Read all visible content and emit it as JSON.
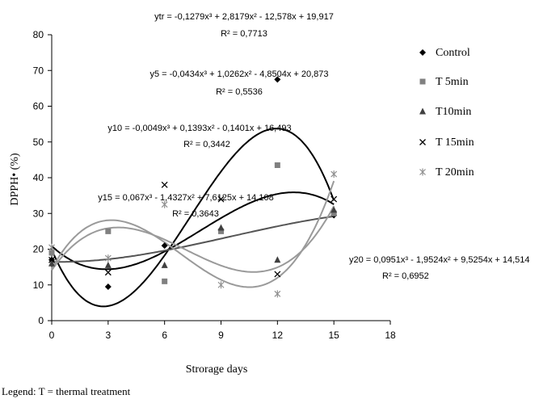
{
  "chart_data": {
    "type": "scatter",
    "xlabel": "Strorage days",
    "ylabel": "DPPH• (%)",
    "xlim": [
      0,
      18
    ],
    "ylim": [
      0,
      80
    ],
    "xticks": [
      0,
      3,
      6,
      9,
      12,
      15,
      18
    ],
    "yticks": [
      0,
      10,
      20,
      30,
      40,
      50,
      60,
      70,
      80
    ],
    "grid": false,
    "legend_position": "right",
    "series": [
      {
        "name": "Control",
        "marker": "diamond",
        "color": "#000000",
        "x": [
          0,
          3,
          6,
          9,
          12,
          15
        ],
        "y": [
          17,
          9.5,
          21,
          25.5,
          67.5,
          29.5
        ],
        "trend": {
          "coeffs": [
            -0.1279,
            2.8179,
            -12.578,
            19.917
          ],
          "color": "#000000",
          "equation": "ytr = -0,1279x³ + 2,8179x² - 12,578x + 19,917",
          "r2": "R² = 0,7713"
        }
      },
      {
        "name": "T 5min",
        "marker": "square",
        "color": "#808080",
        "x": [
          0,
          3,
          6,
          9,
          12,
          15
        ],
        "y": [
          19,
          25,
          11,
          25,
          43.5,
          30
        ],
        "trend": {
          "coeffs": [
            -0.0434,
            1.0262,
            -4.8504,
            20.873
          ],
          "color": "#000000",
          "equation": "y5 = -0,0434x³ + 1,0262x² - 4,8504x + 20,873",
          "r2": "R² = 0,5536"
        }
      },
      {
        "name": "T10min",
        "marker": "triangle",
        "color": "#404040",
        "x": [
          0,
          3,
          6,
          9,
          12,
          15
        ],
        "y": [
          16,
          15.5,
          15.5,
          26,
          17,
          31
        ],
        "trend": {
          "coeffs": [
            -0.0049,
            0.1393,
            -0.1401,
            16.493
          ],
          "color": "#555555",
          "equation": "y10 = -0,0049x³ + 0,1393x² - 0,1401x + 16,493",
          "r2": "R² = 0,3442"
        }
      },
      {
        "name": "T 15min",
        "marker": "x",
        "color": "#000000",
        "x": [
          0,
          3,
          6,
          9,
          12,
          15
        ],
        "y": [
          17,
          13.5,
          38,
          34,
          13,
          34
        ],
        "trend": {
          "coeffs": [
            0.067,
            -1.4327,
            7.6125,
            14.108
          ],
          "color": "#9a9a9a",
          "equation": "y15 = 0,067x³ - 1,4327x² + 7,6125x + 14,108",
          "r2": "R² = 0,3643"
        }
      },
      {
        "name": "T 20min",
        "marker": "star",
        "color": "#909090",
        "x": [
          0,
          3,
          6,
          9,
          12,
          15
        ],
        "y": [
          20.5,
          17.5,
          32.5,
          10,
          7.5,
          41
        ],
        "trend": {
          "coeffs": [
            0.0951,
            -1.9524,
            9.5254,
            14.514
          ],
          "color": "#9a9a9a",
          "equation": "y20 = 0,0951x³ - 1,9524x² + 9,5254x + 14,514",
          "r2": "R² = 0,6952"
        }
      }
    ],
    "footnote": "Legend: T = thermal treatment"
  }
}
